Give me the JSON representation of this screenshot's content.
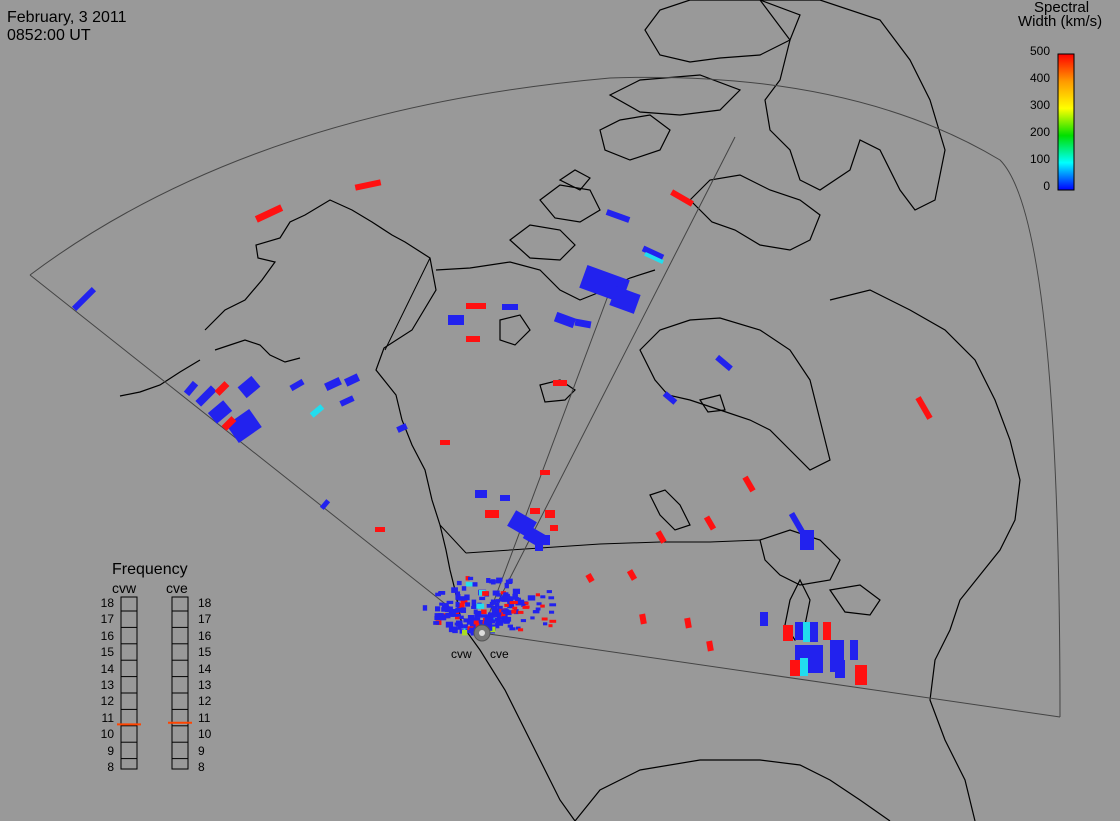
{
  "header": {
    "date": "February, 3 2011",
    "time": "0852:00 UT"
  },
  "colorbar": {
    "title_line1": "Spectral",
    "title_line2": "Width (km/s)",
    "ticks": [
      "500",
      "400",
      "300",
      "200",
      "100",
      "0"
    ],
    "colors": [
      "#ff0000",
      "#ff9900",
      "#ffff00",
      "#00e000",
      "#00ffff",
      "#0000ff"
    ]
  },
  "radars": {
    "west": "cvw",
    "east": "cve"
  },
  "frequency": {
    "title": "Frequency",
    "left_label": "cvw",
    "right_label": "cve",
    "levels": [
      "18",
      "17",
      "16",
      "15",
      "14",
      "13",
      "12",
      "11",
      "10",
      "9",
      "8"
    ],
    "cvw_value": 10.6,
    "cve_value": 10.7,
    "indicator_color": "#ff4400"
  },
  "colors": {
    "background": "#999999",
    "land_outline": "#000000",
    "fov_outline": "#444444",
    "low_width": "#2222ee",
    "high_width": "#ff1111",
    "cyan": "#22ddee"
  }
}
